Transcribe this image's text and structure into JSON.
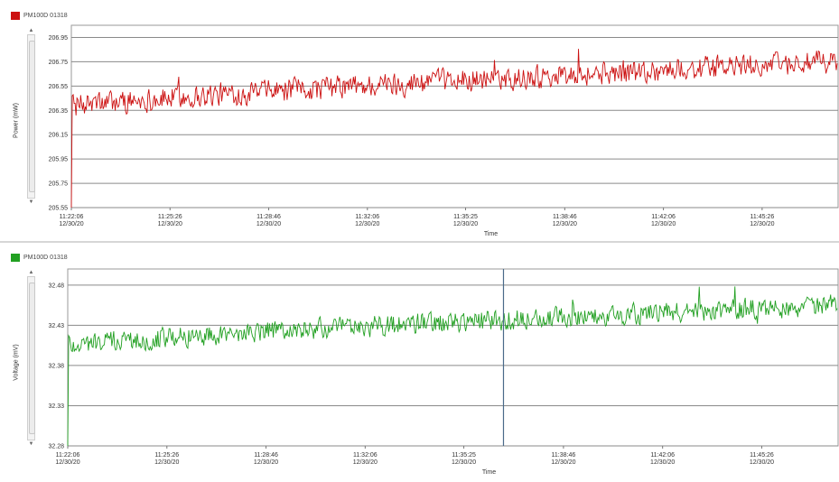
{
  "chart_data": [
    {
      "type": "line",
      "legend": "PM100D 01318",
      "legend_placement": "top-left",
      "color": "#cc1111",
      "ylabel": "Power (mW)",
      "xlabel": "Time",
      "yticks": [
        "206.95",
        "206.75",
        "206.55",
        "206.35",
        "206.15",
        "205.95",
        "205.75",
        "205.55"
      ],
      "ylim": [
        205.55,
        207.05
      ],
      "xticks": [
        {
          "time": "11:22:06",
          "date": "12/30/20"
        },
        {
          "time": "11:25:26",
          "date": "12/30/20"
        },
        {
          "time": "11:28:46",
          "date": "12/30/20"
        },
        {
          "time": "11:32:06",
          "date": "12/30/20"
        },
        {
          "time": "11:35:25",
          "date": "12/30/20"
        },
        {
          "time": "11:38:46",
          "date": "12/30/20"
        },
        {
          "time": "11:42:06",
          "date": "12/30/20"
        },
        {
          "time": "11:45:26",
          "date": "12/30/20"
        }
      ],
      "x_range": [
        "11:22:06",
        "11:48:00"
      ],
      "grid": true,
      "series": [
        {
          "trend_start": 206.38,
          "trend_end": 206.75,
          "noise": 0.09,
          "min": 205.55,
          "max": 206.98
        }
      ]
    },
    {
      "type": "line",
      "legend": "PM100D 01318",
      "legend_placement": "top-left",
      "color": "#22a022",
      "ylabel": "Voltage (mV)",
      "xlabel": "Time",
      "yticks": [
        "32.48",
        "32.43",
        "32.38",
        "32.33",
        "32.28"
      ],
      "ylim": [
        32.28,
        32.5
      ],
      "xticks": [
        {
          "time": "11:22:06",
          "date": "12/30/20"
        },
        {
          "time": "11:25:26",
          "date": "12/30/20"
        },
        {
          "time": "11:28:46",
          "date": "12/30/20"
        },
        {
          "time": "11:32:06",
          "date": "12/30/20"
        },
        {
          "time": "11:35:25",
          "date": "12/30/20"
        },
        {
          "time": "11:38:46",
          "date": "12/30/20"
        },
        {
          "time": "11:42:06",
          "date": "12/30/20"
        },
        {
          "time": "11:45:26",
          "date": "12/30/20"
        }
      ],
      "x_range": [
        "11:22:06",
        "11:48:00"
      ],
      "cursor_time": "11:36:45",
      "grid": true,
      "series": [
        {
          "trend_start": 32.405,
          "trend_end": 32.455,
          "noise": 0.012,
          "min": 32.28,
          "max": 32.495
        }
      ]
    }
  ]
}
